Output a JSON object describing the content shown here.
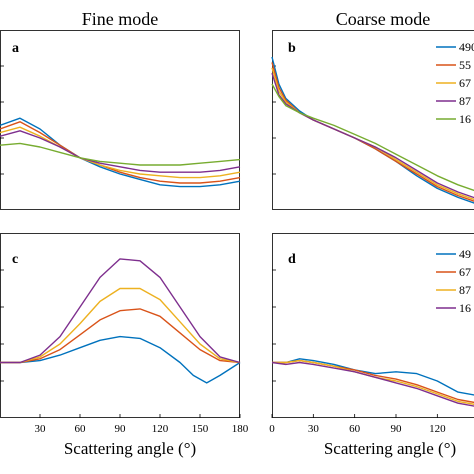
{
  "figure": {
    "column_titles": [
      "Fine mode",
      "Coarse mode"
    ],
    "panel_letters": [
      "a",
      "b",
      "c",
      "d"
    ]
  },
  "chart_data": [
    {
      "type": "line",
      "panel": "a",
      "title": "Fine mode",
      "xlabel": "",
      "ylabel": "",
      "xlim": [
        0,
        180
      ],
      "ylim": [
        0,
        1
      ],
      "grid": false,
      "series": [
        {
          "color": "#0072BD",
          "x": [
            0,
            15,
            30,
            45,
            60,
            75,
            90,
            105,
            120,
            135,
            150,
            165,
            180
          ],
          "y": [
            0.47,
            0.51,
            0.45,
            0.36,
            0.29,
            0.24,
            0.2,
            0.17,
            0.14,
            0.13,
            0.13,
            0.14,
            0.16
          ]
        },
        {
          "color": "#D95319",
          "x": [
            0,
            15,
            30,
            45,
            60,
            75,
            90,
            105,
            120,
            135,
            150,
            165,
            180
          ],
          "y": [
            0.45,
            0.49,
            0.43,
            0.36,
            0.29,
            0.25,
            0.21,
            0.18,
            0.16,
            0.15,
            0.15,
            0.16,
            0.18
          ]
        },
        {
          "color": "#EDB120",
          "x": [
            0,
            15,
            30,
            45,
            60,
            75,
            90,
            105,
            120,
            135,
            150,
            165,
            180
          ],
          "y": [
            0.43,
            0.46,
            0.41,
            0.35,
            0.29,
            0.25,
            0.22,
            0.2,
            0.19,
            0.18,
            0.18,
            0.19,
            0.21
          ]
        },
        {
          "color": "#7E2F8E",
          "x": [
            0,
            15,
            30,
            45,
            60,
            75,
            90,
            105,
            120,
            135,
            150,
            165,
            180
          ],
          "y": [
            0.41,
            0.44,
            0.4,
            0.35,
            0.29,
            0.26,
            0.24,
            0.22,
            0.21,
            0.21,
            0.21,
            0.22,
            0.24
          ]
        },
        {
          "color": "#77AC30",
          "x": [
            0,
            15,
            30,
            45,
            60,
            75,
            90,
            105,
            120,
            135,
            150,
            165,
            180
          ],
          "y": [
            0.36,
            0.37,
            0.35,
            0.32,
            0.29,
            0.27,
            0.26,
            0.25,
            0.25,
            0.25,
            0.26,
            0.27,
            0.28
          ]
        }
      ]
    },
    {
      "type": "line",
      "panel": "b",
      "title": "Coarse mode",
      "xlabel": "",
      "ylabel": "",
      "xlim": [
        0,
        180
      ],
      "ylim": [
        0,
        1
      ],
      "grid": false,
      "legend": {
        "placement": "top-right",
        "entries": [
          "490",
          "55",
          "67",
          "87",
          "16"
        ]
      },
      "series": [
        {
          "name": "490",
          "color": "#0072BD",
          "x": [
            0,
            5,
            10,
            20,
            30,
            45,
            60,
            75,
            90,
            105,
            120,
            135,
            150,
            165,
            180
          ],
          "y": [
            0.85,
            0.7,
            0.62,
            0.55,
            0.5,
            0.45,
            0.4,
            0.34,
            0.27,
            0.19,
            0.12,
            0.07,
            0.03,
            0.02,
            0.08
          ]
        },
        {
          "name": "55",
          "color": "#D95319",
          "x": [
            0,
            5,
            10,
            20,
            30,
            45,
            60,
            75,
            90,
            105,
            120,
            135,
            150,
            165,
            180
          ],
          "y": [
            0.82,
            0.68,
            0.61,
            0.54,
            0.5,
            0.45,
            0.4,
            0.34,
            0.27,
            0.2,
            0.13,
            0.08,
            0.04,
            0.03,
            0.09
          ]
        },
        {
          "name": "67",
          "color": "#EDB120",
          "x": [
            0,
            5,
            10,
            20,
            30,
            45,
            60,
            75,
            90,
            105,
            120,
            135,
            150,
            165,
            180
          ],
          "y": [
            0.79,
            0.66,
            0.6,
            0.54,
            0.5,
            0.45,
            0.4,
            0.35,
            0.28,
            0.21,
            0.14,
            0.09,
            0.05,
            0.04,
            0.1
          ]
        },
        {
          "name": "87",
          "color": "#7E2F8E",
          "x": [
            0,
            5,
            10,
            20,
            30,
            45,
            60,
            75,
            90,
            105,
            120,
            135,
            150,
            165,
            180
          ],
          "y": [
            0.76,
            0.64,
            0.59,
            0.54,
            0.5,
            0.45,
            0.4,
            0.35,
            0.29,
            0.22,
            0.15,
            0.1,
            0.06,
            0.05,
            0.11
          ]
        },
        {
          "name": "16",
          "color": "#77AC30",
          "x": [
            0,
            5,
            10,
            20,
            30,
            45,
            60,
            75,
            90,
            105,
            120,
            135,
            150,
            165,
            180
          ],
          "y": [
            0.7,
            0.63,
            0.58,
            0.54,
            0.51,
            0.47,
            0.42,
            0.37,
            0.31,
            0.25,
            0.19,
            0.14,
            0.1,
            0.09,
            0.14
          ]
        }
      ]
    },
    {
      "type": "line",
      "panel": "c",
      "title": "",
      "xlabel": "Scattering angle (°)",
      "ylabel": "",
      "xlim": [
        0,
        180
      ],
      "ylim": [
        0,
        1
      ],
      "xticks": [
        30,
        60,
        90,
        120,
        150,
        180
      ],
      "grid": false,
      "series": [
        {
          "color": "#0072BD",
          "x": [
            0,
            15,
            30,
            45,
            60,
            75,
            90,
            105,
            120,
            135,
            145,
            155,
            165,
            180
          ],
          "y": [
            0.3,
            0.3,
            0.31,
            0.34,
            0.38,
            0.42,
            0.44,
            0.43,
            0.38,
            0.3,
            0.23,
            0.19,
            0.23,
            0.3
          ]
        },
        {
          "color": "#D95319",
          "x": [
            0,
            15,
            30,
            45,
            60,
            75,
            90,
            105,
            120,
            135,
            150,
            165,
            180
          ],
          "y": [
            0.3,
            0.3,
            0.32,
            0.37,
            0.45,
            0.53,
            0.58,
            0.59,
            0.55,
            0.46,
            0.37,
            0.31,
            0.3
          ]
        },
        {
          "color": "#EDB120",
          "x": [
            0,
            15,
            30,
            45,
            60,
            75,
            90,
            105,
            120,
            135,
            150,
            165,
            180
          ],
          "y": [
            0.3,
            0.3,
            0.33,
            0.4,
            0.51,
            0.63,
            0.7,
            0.7,
            0.64,
            0.52,
            0.4,
            0.32,
            0.3
          ]
        },
        {
          "color": "#7E2F8E",
          "x": [
            0,
            15,
            30,
            45,
            60,
            75,
            90,
            105,
            120,
            135,
            150,
            165,
            180
          ],
          "y": [
            0.3,
            0.3,
            0.34,
            0.44,
            0.6,
            0.76,
            0.86,
            0.85,
            0.76,
            0.6,
            0.44,
            0.33,
            0.3
          ]
        }
      ]
    },
    {
      "type": "line",
      "panel": "d",
      "title": "",
      "xlabel": "Scattering angle (°)",
      "ylabel": "",
      "xlim": [
        0,
        180
      ],
      "ylim": [
        0,
        1
      ],
      "xticks": [
        0,
        30,
        60,
        90,
        120
      ],
      "grid": false,
      "legend": {
        "placement": "top-right",
        "entries": [
          "49",
          "67",
          "87",
          "16"
        ]
      },
      "series": [
        {
          "name": "49",
          "color": "#0072BD",
          "x": [
            0,
            10,
            20,
            30,
            45,
            60,
            75,
            90,
            105,
            120,
            135,
            150,
            165,
            180
          ],
          "y": [
            0.3,
            0.3,
            0.32,
            0.31,
            0.29,
            0.26,
            0.24,
            0.25,
            0.24,
            0.2,
            0.14,
            0.12,
            0.15,
            0.2
          ]
        },
        {
          "name": "67",
          "color": "#D95319",
          "x": [
            0,
            10,
            20,
            30,
            45,
            60,
            75,
            90,
            105,
            120,
            135,
            150,
            165,
            180
          ],
          "y": [
            0.3,
            0.3,
            0.31,
            0.3,
            0.28,
            0.26,
            0.23,
            0.21,
            0.18,
            0.14,
            0.1,
            0.08,
            0.1,
            0.15
          ]
        },
        {
          "name": "87",
          "color": "#EDB120",
          "x": [
            0,
            10,
            20,
            30,
            45,
            60,
            75,
            90,
            105,
            120,
            135,
            150,
            165,
            180
          ],
          "y": [
            0.3,
            0.3,
            0.31,
            0.3,
            0.28,
            0.25,
            0.22,
            0.2,
            0.17,
            0.13,
            0.09,
            0.07,
            0.09,
            0.14
          ]
        },
        {
          "name": "16",
          "color": "#7E2F8E",
          "x": [
            0,
            10,
            20,
            30,
            45,
            60,
            75,
            90,
            105,
            120,
            135,
            150,
            165,
            180
          ],
          "y": [
            0.3,
            0.29,
            0.3,
            0.29,
            0.27,
            0.25,
            0.22,
            0.19,
            0.16,
            0.12,
            0.08,
            0.06,
            0.08,
            0.13
          ]
        }
      ]
    }
  ]
}
